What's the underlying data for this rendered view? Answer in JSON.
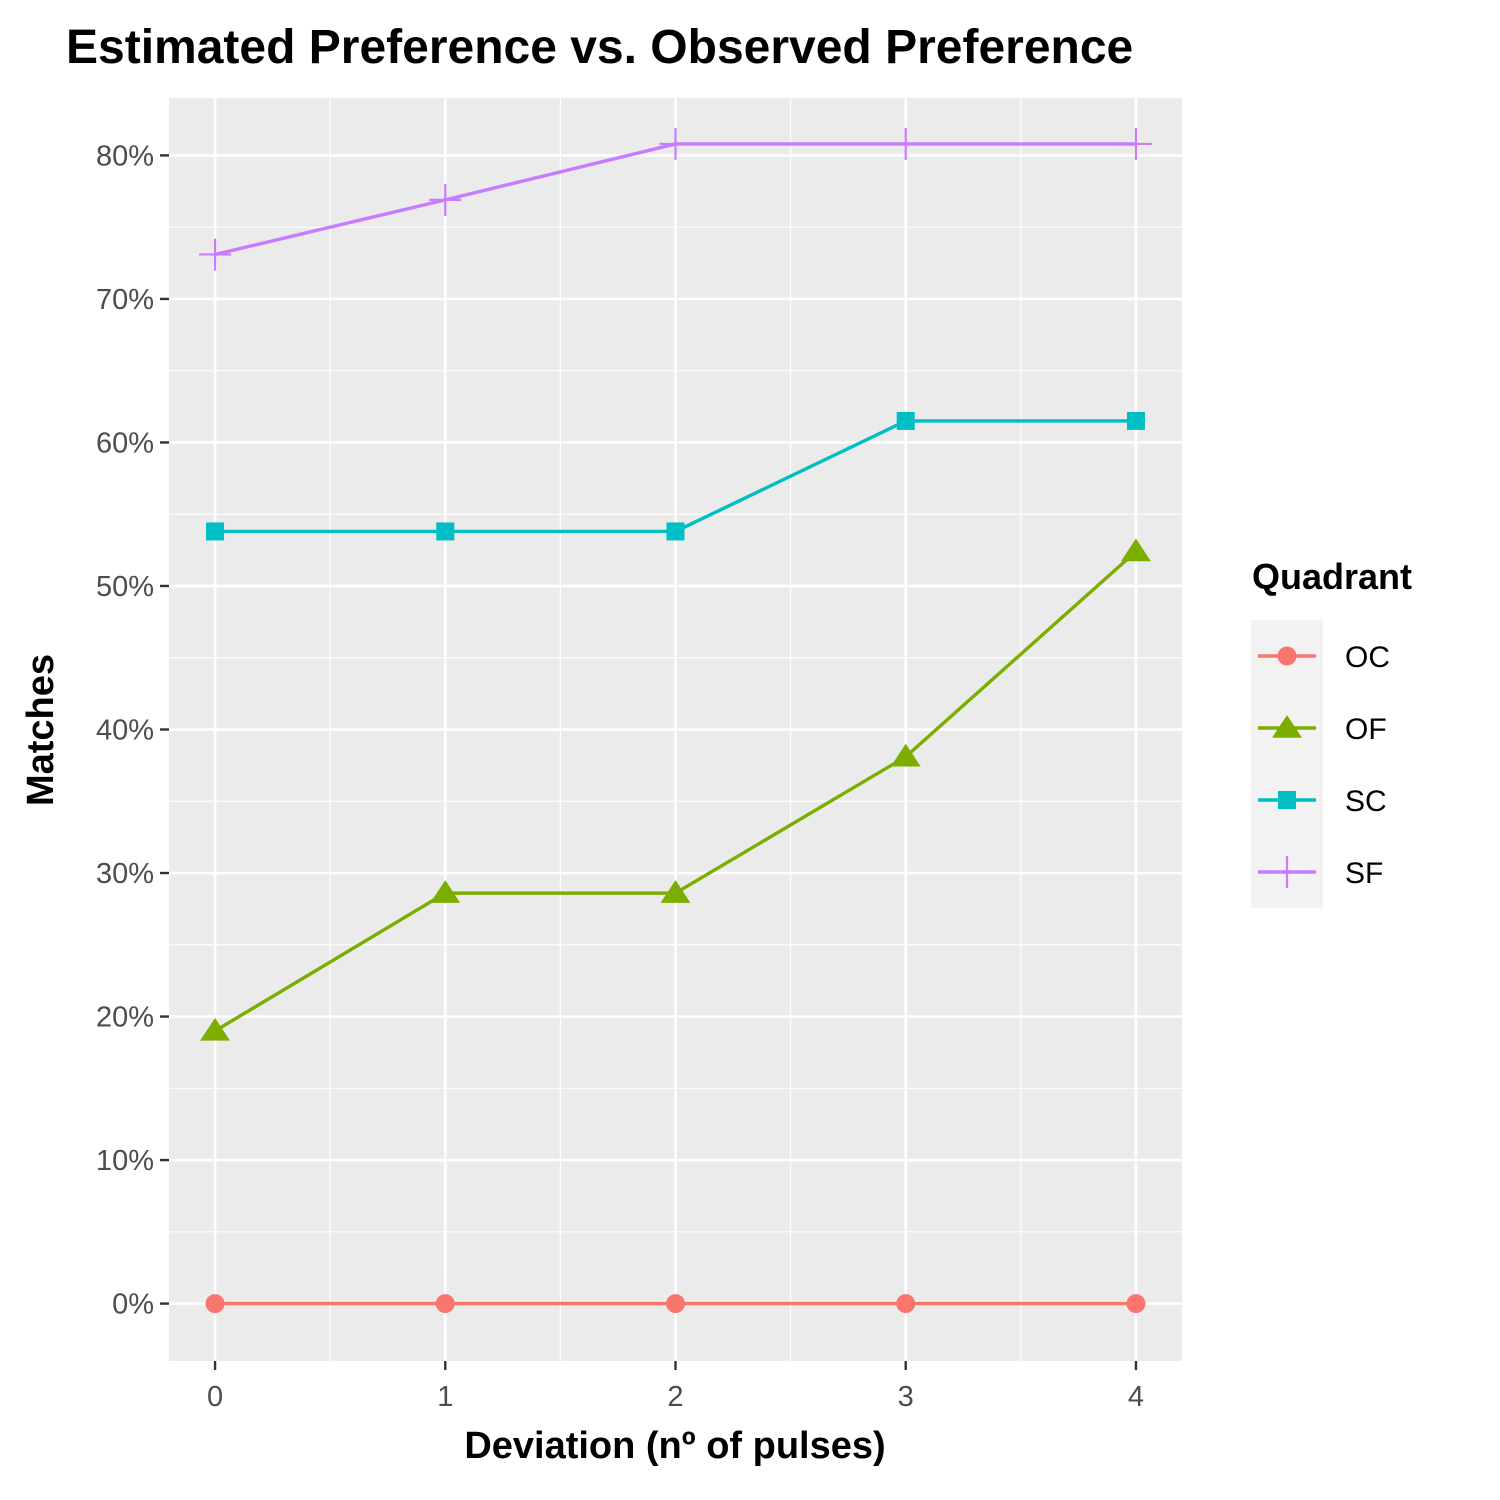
{
  "chart_data": {
    "type": "line",
    "title": "Estimated Preference vs. Observed Preference",
    "xlabel": "Deviation (nº of pulses)",
    "ylabel": "Matches",
    "x": [
      0,
      1,
      2,
      3,
      4
    ],
    "x_ticks": [
      "0",
      "1",
      "2",
      "3",
      "4"
    ],
    "xlim": [
      -0.2,
      4.2
    ],
    "ylim": [
      -0.04,
      0.84
    ],
    "y_ticks": [
      "0%",
      "10%",
      "20%",
      "30%",
      "40%",
      "50%",
      "60%",
      "70%",
      "80%"
    ],
    "grid": true,
    "legend_title": "Quadrant",
    "legend_position": "right",
    "series": [
      {
        "name": "OC",
        "values": [
          0.0,
          0.0,
          0.0,
          0.0,
          0.0
        ],
        "color": "#F8766D",
        "marker": "circle"
      },
      {
        "name": "OF",
        "values": [
          0.19,
          0.286,
          0.286,
          0.381,
          0.524
        ],
        "color": "#7CAE00",
        "marker": "triangle"
      },
      {
        "name": "SC",
        "values": [
          0.538,
          0.538,
          0.538,
          0.615,
          0.615
        ],
        "color": "#00BFC4",
        "marker": "square"
      },
      {
        "name": "SF",
        "values": [
          0.731,
          0.769,
          0.808,
          0.808,
          0.808
        ],
        "color": "#C77CFF",
        "marker": "plus"
      }
    ]
  }
}
